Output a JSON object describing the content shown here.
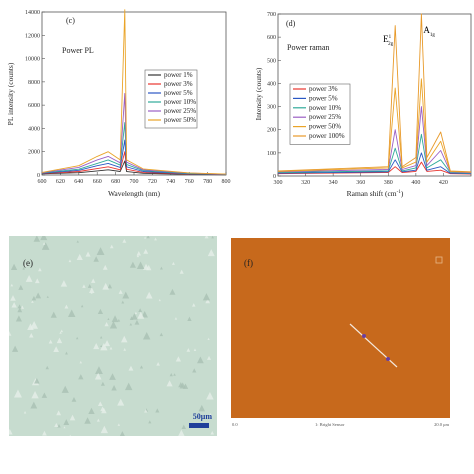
{
  "colors": {
    "power 1%": "#333333",
    "power 3%": "#e8352f",
    "power 5%": "#2a57c4",
    "power 10%": "#2faa9a",
    "power 25%": "#9b5fc4",
    "power 50%": "#eaa428",
    "power 100%": "#e89a2a",
    "optical_bg": "#c7dccf",
    "afm_bg": "#c7691c",
    "scalebar": "#1f3f9a"
  },
  "chart_data": [
    {
      "type": "line",
      "panel_label": "(c)",
      "title": "Power PL",
      "xlabel": "Wavelength (nm)",
      "ylabel": "PL intensity (counts)",
      "xlim": [
        600,
        800
      ],
      "ylim": [
        0,
        14000
      ],
      "x_ticks": [
        "600",
        "620",
        "640",
        "660",
        "680",
        "700",
        "720",
        "740",
        "760",
        "780",
        "800"
      ],
      "y_ticks": [
        "0",
        "2000",
        "4000",
        "6000",
        "8000",
        "10000",
        "12000",
        "14000"
      ],
      "legend_position": "center-right",
      "series": [
        {
          "name": "power 1%",
          "values": [
            [
              600,
              100
            ],
            [
              640,
              200
            ],
            [
              660,
              350
            ],
            [
              672,
              450
            ],
            [
              685,
              300
            ],
            [
              690,
              1200
            ],
            [
              692,
              300
            ],
            [
              710,
              150
            ],
            [
              760,
              60
            ],
            [
              800,
              30
            ]
          ]
        },
        {
          "name": "power 3%",
          "values": [
            [
              600,
              120
            ],
            [
              640,
              300
            ],
            [
              660,
              550
            ],
            [
              672,
              700
            ],
            [
              685,
              450
            ],
            [
              690,
              2000
            ],
            [
              692,
              500
            ],
            [
              710,
              220
            ],
            [
              760,
              80
            ],
            [
              800,
              40
            ]
          ]
        },
        {
          "name": "power 5%",
          "values": [
            [
              600,
              150
            ],
            [
              640,
              400
            ],
            [
              660,
              800
            ],
            [
              672,
              1000
            ],
            [
              685,
              650
            ],
            [
              690,
              3000
            ],
            [
              692,
              700
            ],
            [
              710,
              300
            ],
            [
              760,
              100
            ],
            [
              800,
              50
            ]
          ]
        },
        {
          "name": "power 10%",
          "values": [
            [
              600,
              180
            ],
            [
              640,
              500
            ],
            [
              660,
              1000
            ],
            [
              672,
              1300
            ],
            [
              685,
              850
            ],
            [
              690,
              4500
            ],
            [
              692,
              900
            ],
            [
              710,
              380
            ],
            [
              760,
              130
            ],
            [
              800,
              60
            ]
          ]
        },
        {
          "name": "power 25%",
          "values": [
            [
              600,
              200
            ],
            [
              640,
              650
            ],
            [
              660,
              1300
            ],
            [
              672,
              1600
            ],
            [
              685,
              1050
            ],
            [
              690,
              7000
            ],
            [
              692,
              1100
            ],
            [
              710,
              450
            ],
            [
              760,
              160
            ],
            [
              800,
              70
            ]
          ]
        },
        {
          "name": "power 50%",
          "values": [
            [
              600,
              220
            ],
            [
              640,
              800
            ],
            [
              660,
              1600
            ],
            [
              672,
              2000
            ],
            [
              685,
              1300
            ],
            [
              690,
              14200
            ],
            [
              692,
              1300
            ],
            [
              710,
              520
            ],
            [
              760,
              180
            ],
            [
              800,
              80
            ]
          ]
        }
      ]
    },
    {
      "type": "line",
      "panel_label": "(d)",
      "title": "Power raman",
      "xlabel": "Raman shift (cm",
      "xlabel_sup": "-1",
      "xlabel_tail": ")",
      "ylabel": "Intensity (counts)",
      "xlim": [
        300,
        440
      ],
      "ylim": [
        0,
        700
      ],
      "x_ticks": [
        "300",
        "320",
        "340",
        "360",
        "380",
        "400",
        "420"
      ],
      "y_ticks": [
        "0",
        "100",
        "200",
        "300",
        "400",
        "500",
        "600",
        "700"
      ],
      "peak_labels": [
        {
          "text": "E",
          "sup": "1",
          "sub": "2g",
          "x": 385
        },
        {
          "text": "A",
          "sup": "",
          "sub": "1g",
          "x": 404
        }
      ],
      "legend_position": "center-right",
      "series": [
        {
          "name": "power 3%",
          "values": [
            [
              300,
              10
            ],
            [
              380,
              15
            ],
            [
              385,
              40
            ],
            [
              390,
              15
            ],
            [
              400,
              20
            ],
            [
              404,
              60
            ],
            [
              408,
              20
            ],
            [
              418,
              25
            ],
            [
              425,
              10
            ],
            [
              440,
              8
            ]
          ]
        },
        {
          "name": "power 5%",
          "values": [
            [
              300,
              12
            ],
            [
              380,
              18
            ],
            [
              385,
              70
            ],
            [
              390,
              18
            ],
            [
              400,
              25
            ],
            [
              404,
              100
            ],
            [
              408,
              25
            ],
            [
              418,
              40
            ],
            [
              425,
              12
            ],
            [
              440,
              10
            ]
          ]
        },
        {
          "name": "power 10%",
          "values": [
            [
              300,
              15
            ],
            [
              380,
              22
            ],
            [
              385,
              120
            ],
            [
              390,
              22
            ],
            [
              400,
              35
            ],
            [
              404,
              180
            ],
            [
              408,
              35
            ],
            [
              418,
              70
            ],
            [
              425,
              15
            ],
            [
              440,
              12
            ]
          ]
        },
        {
          "name": "power 25%",
          "values": [
            [
              300,
              18
            ],
            [
              380,
              28
            ],
            [
              385,
              200
            ],
            [
              390,
              28
            ],
            [
              400,
              45
            ],
            [
              404,
              300
            ],
            [
              408,
              45
            ],
            [
              418,
              110
            ],
            [
              425,
              18
            ],
            [
              440,
              14
            ]
          ]
        },
        {
          "name": "power 50%",
          "values": [
            [
              300,
              20
            ],
            [
              380,
              35
            ],
            [
              385,
              380
            ],
            [
              390,
              35
            ],
            [
              400,
              60
            ],
            [
              404,
              420
            ],
            [
              408,
              60
            ],
            [
              418,
              150
            ],
            [
              425,
              20
            ],
            [
              440,
              16
            ]
          ]
        },
        {
          "name": "power 100%",
          "values": [
            [
              300,
              22
            ],
            [
              380,
              40
            ],
            [
              385,
              650
            ],
            [
              390,
              40
            ],
            [
              400,
              80
            ],
            [
              404,
              700
            ],
            [
              408,
              80
            ],
            [
              418,
              190
            ],
            [
              425,
              22
            ],
            [
              440,
              18
            ]
          ]
        }
      ]
    }
  ],
  "panel_e": {
    "label": "(e)",
    "scalebar": "50μm"
  },
  "panel_f": {
    "label": "(f)",
    "axis_left": "0.0",
    "axis_center": "1: Bright Sensor",
    "axis_right": "20.0 μm"
  }
}
